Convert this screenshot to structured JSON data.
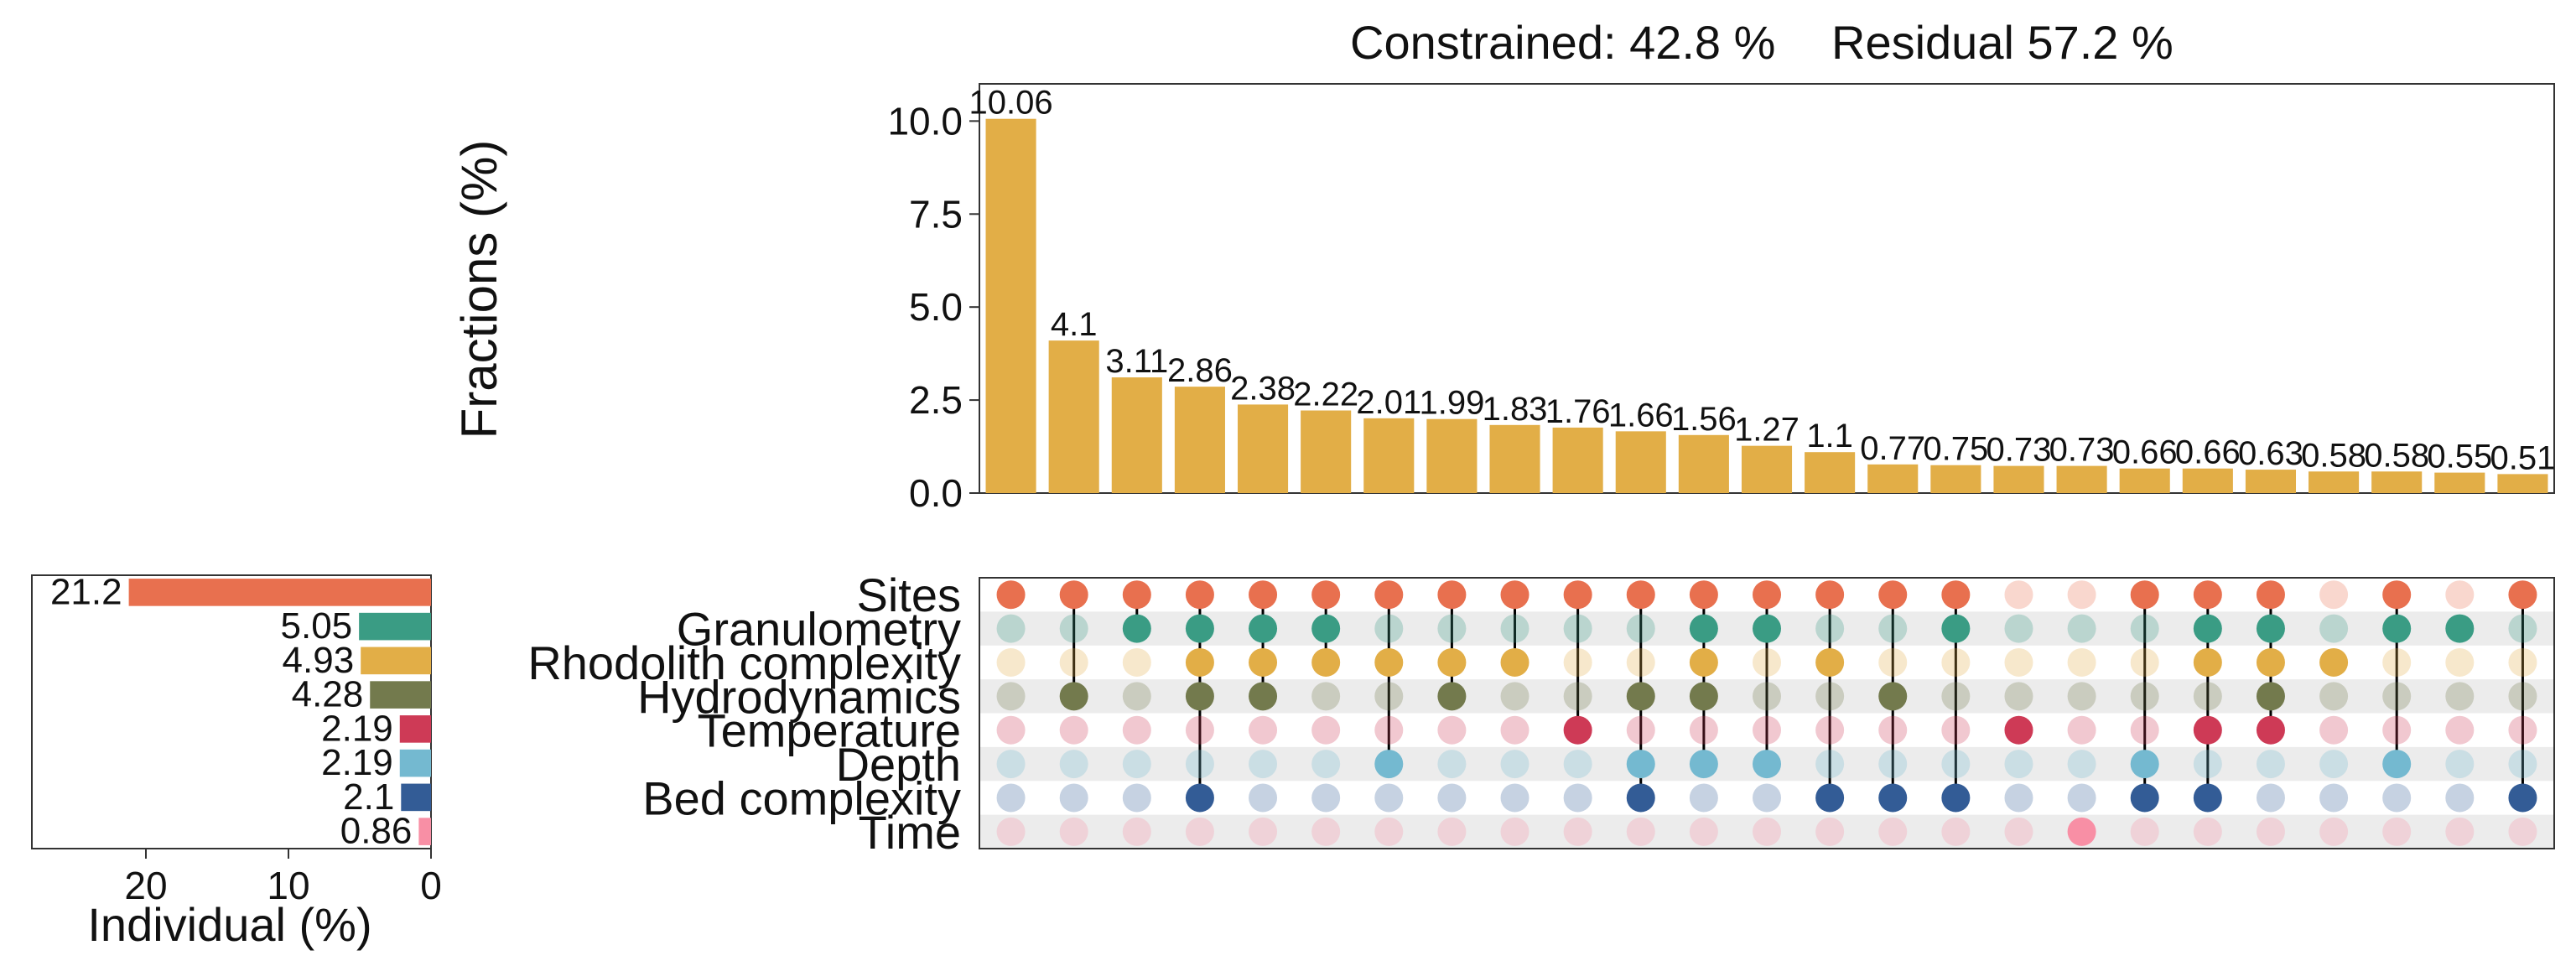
{
  "chart_data": [
    {
      "type": "bar",
      "title_constrained": "Constrained: 42.8 %",
      "title_residual": "Residual 57.2 %",
      "ylabel": "Fractions (%)",
      "ylim": [
        0,
        11
      ],
      "yticks": [
        "0.0",
        "2.5",
        "5.0",
        "7.5",
        "10.0"
      ],
      "yticks_values": [
        0,
        2.5,
        5.0,
        7.5,
        10.0
      ],
      "values": [
        10.06,
        4.1,
        3.11,
        2.86,
        2.38,
        2.22,
        2.01,
        1.99,
        1.83,
        1.76,
        1.66,
        1.56,
        1.27,
        1.1,
        0.77,
        0.75,
        0.73,
        0.73,
        0.66,
        0.66,
        0.63,
        0.58,
        0.58,
        0.55,
        0.51
      ],
      "labels": [
        "10.06",
        "4.1",
        "3.11",
        "2.86",
        "2.38",
        "2.22",
        "2.01",
        "1.99",
        "1.83",
        "1.76",
        "1.66",
        "1.56",
        "1.27",
        "1.1",
        "0.77",
        "0.75",
        "0.73",
        "0.73",
        "0.66",
        "0.66",
        "0.63",
        "0.58",
        "0.58",
        "0.55",
        "0.51"
      ],
      "bar_color": "#E2AE47"
    },
    {
      "type": "matrix",
      "sets": [
        "Sites",
        "Granulometry",
        "Rhodolith complexity",
        "Hydrodynamics",
        "Temperature",
        "Depth",
        "Bed complexity",
        "Time"
      ],
      "set_colors": [
        "#E8704F",
        "#3A9C84",
        "#E2AE47",
        "#737A4D",
        "#CE3A56",
        "#74B9D0",
        "#335C96",
        "#F88FA5"
      ],
      "membership": [
        [
          1,
          0,
          0,
          0,
          0,
          0,
          0,
          0
        ],
        [
          1,
          0,
          0,
          1,
          0,
          0,
          0,
          0
        ],
        [
          1,
          1,
          0,
          0,
          0,
          0,
          0,
          0
        ],
        [
          1,
          1,
          1,
          1,
          0,
          0,
          1,
          0
        ],
        [
          1,
          1,
          1,
          1,
          0,
          0,
          0,
          0
        ],
        [
          1,
          1,
          1,
          0,
          0,
          0,
          0,
          0
        ],
        [
          1,
          0,
          1,
          0,
          0,
          1,
          0,
          0
        ],
        [
          1,
          0,
          1,
          1,
          0,
          0,
          0,
          0
        ],
        [
          1,
          0,
          1,
          0,
          0,
          0,
          0,
          0
        ],
        [
          1,
          0,
          0,
          0,
          1,
          0,
          0,
          0
        ],
        [
          1,
          0,
          0,
          1,
          0,
          1,
          1,
          0
        ],
        [
          1,
          1,
          1,
          1,
          0,
          1,
          0,
          0
        ],
        [
          1,
          1,
          0,
          0,
          0,
          1,
          0,
          0
        ],
        [
          1,
          0,
          1,
          0,
          0,
          0,
          1,
          0
        ],
        [
          1,
          0,
          0,
          1,
          0,
          0,
          1,
          0
        ],
        [
          1,
          1,
          0,
          0,
          0,
          0,
          1,
          0
        ],
        [
          0,
          0,
          0,
          0,
          1,
          0,
          0,
          0
        ],
        [
          0,
          0,
          0,
          0,
          0,
          0,
          0,
          1
        ],
        [
          1,
          0,
          0,
          0,
          0,
          1,
          1,
          0
        ],
        [
          1,
          1,
          1,
          0,
          1,
          0,
          1,
          0
        ],
        [
          1,
          1,
          1,
          1,
          1,
          0,
          0,
          0
        ],
        [
          0,
          0,
          1,
          0,
          0,
          0,
          0,
          0
        ],
        [
          1,
          1,
          0,
          0,
          0,
          1,
          0,
          0
        ],
        [
          0,
          1,
          0,
          0,
          0,
          0,
          0,
          0
        ],
        [
          1,
          0,
          0,
          0,
          0,
          0,
          1,
          0
        ]
      ]
    },
    {
      "type": "hbar",
      "xlabel": "Individual (%)",
      "xticks": [
        "0",
        "10",
        "20"
      ],
      "xticks_values": [
        0,
        10,
        20
      ],
      "xlim": [
        28,
        0
      ],
      "values": [
        21.2,
        5.05,
        4.93,
        4.28,
        2.19,
        2.19,
        2.1,
        0.86
      ],
      "labels": [
        "21.2",
        "5.05",
        "4.93",
        "4.28",
        "2.19",
        "2.19",
        "2.1",
        "0.86"
      ],
      "colors": [
        "#E8704F",
        "#3A9C84",
        "#E2AE47",
        "#737A4D",
        "#CE3A56",
        "#74B9D0",
        "#335C96",
        "#F88FA5"
      ]
    }
  ]
}
